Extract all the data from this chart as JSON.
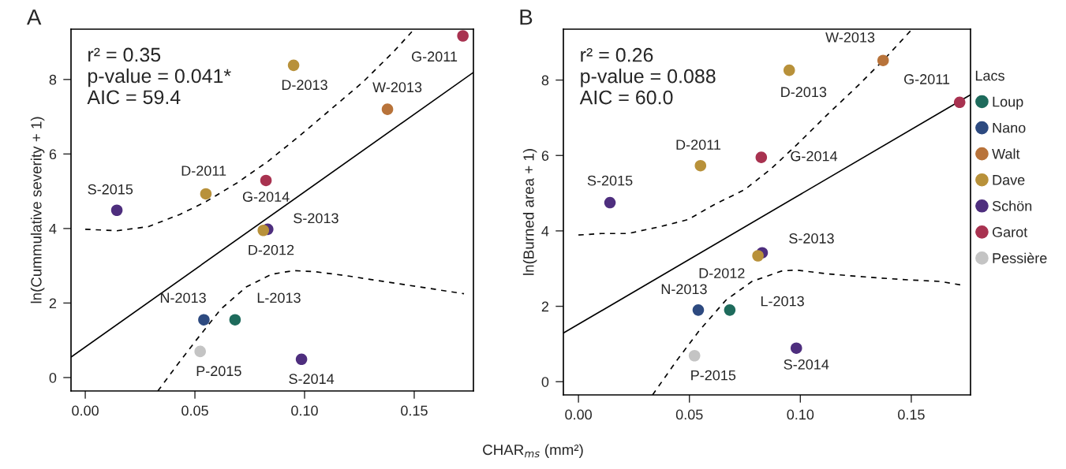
{
  "chart_data": [
    {
      "type": "scatter",
      "title": "A",
      "ylabel": "ln(Cummulative severity + 1)",
      "xlabel": "CHAR$_{ms}$ (mm²)",
      "xlim": [
        -0.0065,
        0.177
      ],
      "ylim": [
        -0.36,
        9.35
      ],
      "xticks": [
        {
          "value": 0,
          "label": "0.00"
        },
        {
          "value": 0.05,
          "label": "0.05"
        },
        {
          "value": 0.1,
          "label": "0.10"
        },
        {
          "value": 0.15,
          "label": "0.15"
        }
      ],
      "yticks": [
        0,
        2,
        4,
        6,
        8
      ],
      "grid": false,
      "legend": false,
      "marker": "circle",
      "series": [
        {
          "color": "#1e6b5c",
          "x": [
            0.0683
          ],
          "values": [
            1.55
          ]
        },
        {
          "color": "#2d4a80",
          "x": [
            0.0541
          ],
          "values": [
            1.55
          ]
        },
        {
          "color": "#b8733a",
          "x": [
            0.1378
          ],
          "values": [
            7.2
          ]
        },
        {
          "color": "#b8913a",
          "x": [
            0.055,
            0.0812,
            0.095
          ],
          "values": [
            4.93,
            3.95,
            8.38
          ]
        },
        {
          "color": "#4e2e7e",
          "x": [
            0.0144,
            0.0832,
            0.0986
          ],
          "values": [
            4.49,
            3.98,
            0.49
          ]
        },
        {
          "color": "#a83250",
          "x": [
            0.0824,
            0.1722
          ],
          "values": [
            5.29,
            9.17
          ]
        },
        {
          "color": "#c4c4c4",
          "x": [
            0.0524
          ],
          "values": [
            0.7
          ]
        },
        {
          "type": "line",
          "color": "#000000",
          "line_style": "solid",
          "marker": "none",
          "x": [
            -0.0065,
            0.177
          ],
          "values": [
            0.55,
            8.19
          ]
        },
        {
          "type": "line",
          "color": "#000000",
          "line_style": "dashed",
          "marker": "none",
          "x": [
            0.0,
            0.0144,
            0.0288,
            0.0432,
            0.0547,
            0.0691,
            0.0835,
            0.0978,
            0.1122,
            0.1266,
            0.141,
            0.1489
          ],
          "values": [
            3.98,
            3.94,
            4.05,
            4.38,
            4.71,
            5.22,
            5.81,
            6.49,
            7.21,
            7.93,
            8.77,
            9.28
          ]
        },
        {
          "type": "line",
          "color": "#000000",
          "line_style": "dashed",
          "marker": "none",
          "x": [
            0.0331,
            0.0417,
            0.0504,
            0.0619,
            0.0734,
            0.0849,
            0.095,
            0.105,
            0.1194,
            0.1338,
            0.1482,
            0.1727
          ],
          "values": [
            -0.36,
            0.32,
            0.99,
            1.84,
            2.43,
            2.77,
            2.87,
            2.84,
            2.73,
            2.6,
            2.47,
            2.25
          ]
        }
      ],
      "annotations": [
        "r² = 0.35\np-value = 0.041*\nAIC = 59.4",
        {
          "text": "S-2015",
          "x": 0.0144,
          "y": 4.49
        },
        {
          "text": "D-2011",
          "x": 0.055,
          "y": 4.93
        },
        {
          "text": "G-2014",
          "x": 0.0824,
          "y": 5.29
        },
        {
          "text": "S-2013",
          "x": 0.0832,
          "y": 3.98
        },
        {
          "text": "D-2012",
          "x": 0.0812,
          "y": 3.95
        },
        {
          "text": "D-2013",
          "x": 0.095,
          "y": 8.38
        },
        {
          "text": "W-2013",
          "x": 0.1378,
          "y": 7.2
        },
        {
          "text": "G-2011",
          "x": 0.1722,
          "y": 9.17
        },
        {
          "text": "N-2013",
          "x": 0.0541,
          "y": 1.55
        },
        {
          "text": "L-2013",
          "x": 0.0683,
          "y": 1.55
        },
        {
          "text": "P-2015",
          "x": 0.0524,
          "y": 0.7
        },
        {
          "text": "S-2014",
          "x": 0.0986,
          "y": 0.49
        }
      ]
    },
    {
      "type": "scatter",
      "title": "B",
      "ylabel": "ln(Burned area + 1)",
      "legend_title": "Lacs",
      "xlim": [
        -0.0068,
        0.1767
      ],
      "ylim": [
        -0.35,
        9.35
      ],
      "xticks": [
        {
          "value": 0,
          "label": "0.00"
        },
        {
          "value": 0.05,
          "label": "0.05"
        },
        {
          "value": 0.1,
          "label": "0.10"
        },
        {
          "value": 0.15,
          "label": "0.15"
        }
      ],
      "yticks": [
        0,
        2,
        4,
        6,
        8
      ],
      "grid": false,
      "legend": "right",
      "marker": "circle",
      "series": [
        {
          "name": "Loup",
          "color": "#1e6b5c",
          "x": [
            0.0682
          ],
          "values": [
            1.9
          ]
        },
        {
          "name": "Nano",
          "color": "#2d4a80",
          "x": [
            0.054
          ],
          "values": [
            1.9
          ]
        },
        {
          "name": "Walt",
          "color": "#b8733a",
          "x": [
            0.1373
          ],
          "values": [
            8.52
          ]
        },
        {
          "name": "Dave",
          "color": "#b8913a",
          "x": [
            0.055,
            0.0809,
            0.095
          ],
          "values": [
            5.73,
            3.34,
            8.26
          ]
        },
        {
          "name": "Schön",
          "color": "#4e2e7e",
          "x": [
            0.0142,
            0.0828,
            0.0982
          ],
          "values": [
            4.75,
            3.42,
            0.89
          ]
        },
        {
          "name": "Garot",
          "color": "#a83250",
          "x": [
            0.0824,
            0.1718
          ],
          "values": [
            5.95,
            7.41
          ]
        },
        {
          "name": "Pessière",
          "color": "#c4c4c4",
          "x": [
            0.0523
          ],
          "values": [
            0.69
          ]
        },
        {
          "type": "line",
          "color": "#000000",
          "line_style": "solid",
          "marker": "none",
          "x": [
            -0.0068,
            0.1767
          ],
          "values": [
            1.29,
            7.61
          ]
        },
        {
          "type": "line",
          "color": "#000000",
          "line_style": "dashed",
          "marker": "none",
          "x": [
            0.0,
            0.0105,
            0.0223,
            0.0359,
            0.0494,
            0.0613,
            0.0748,
            0.0867,
            0.0985,
            0.1121,
            0.1256,
            0.1375,
            0.1502
          ],
          "values": [
            3.89,
            3.93,
            3.93,
            4.1,
            4.3,
            4.7,
            5.09,
            5.64,
            6.29,
            7.08,
            7.83,
            8.53,
            9.34
          ]
        },
        {
          "type": "line",
          "color": "#000000",
          "line_style": "dashed",
          "marker": "none",
          "x": [
            0.0334,
            0.0444,
            0.0545,
            0.0664,
            0.0782,
            0.0918,
            0.0985,
            0.1121,
            0.129,
            0.1459,
            0.1629,
            0.173
          ],
          "values": [
            -0.35,
            0.57,
            1.36,
            2.16,
            2.66,
            2.94,
            2.96,
            2.86,
            2.78,
            2.71,
            2.66,
            2.56
          ]
        }
      ],
      "annotations": [
        "r² = 0.26\np-value = 0.088\nAIC = 60.0",
        {
          "text": "S-2015",
          "x": 0.0142,
          "y": 4.75
        },
        {
          "text": "D-2011",
          "x": 0.055,
          "y": 5.73
        },
        {
          "text": "G-2014",
          "x": 0.0824,
          "y": 5.95
        },
        {
          "text": "S-2013",
          "x": 0.0828,
          "y": 3.42
        },
        {
          "text": "D-2012",
          "x": 0.0809,
          "y": 3.34
        },
        {
          "text": "D-2013",
          "x": 0.095,
          "y": 8.26
        },
        {
          "text": "W-2013",
          "x": 0.1373,
          "y": 8.52
        },
        {
          "text": "G-2011",
          "x": 0.1718,
          "y": 7.41
        },
        {
          "text": "N-2013",
          "x": 0.054,
          "y": 1.9
        },
        {
          "text": "L-2013",
          "x": 0.0682,
          "y": 1.9
        },
        {
          "text": "P-2015",
          "x": 0.0523,
          "y": 0.69
        },
        {
          "text": "S-2014",
          "x": 0.0982,
          "y": 0.89
        }
      ]
    }
  ]
}
